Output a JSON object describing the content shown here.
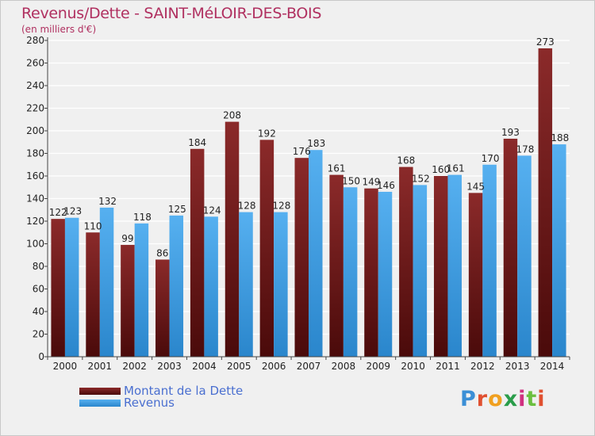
{
  "header": {
    "title": "Revenus/Dette - SAINT-MéLOIR-DES-BOIS",
    "subtitle": "(en milliers d'€)"
  },
  "legend": {
    "items": [
      {
        "label": "Montant de la Dette",
        "color": "#7a1f1f"
      },
      {
        "label": "Revenus",
        "color": "#3e9ee6"
      }
    ]
  },
  "logo": {
    "text": "Proxiti",
    "letter_colors": [
      "#3b8fd6",
      "#e05030",
      "#f0a020",
      "#2a9d4a",
      "#d03080",
      "#6bbf40",
      "#e05030"
    ]
  },
  "chart_data": {
    "type": "bar",
    "title": "Revenus/Dette - SAINT-MéLOIR-DES-BOIS",
    "subtitle": "(en milliers d'€)",
    "categories": [
      "2000",
      "2001",
      "2002",
      "2003",
      "2004",
      "2005",
      "2006",
      "2007",
      "2008",
      "2009",
      "2010",
      "2011",
      "2012",
      "2013",
      "2014"
    ],
    "series": [
      {
        "name": "Montant de la Dette",
        "color": "#7a1f1f",
        "values": [
          122,
          110,
          99,
          86,
          184,
          208,
          192,
          176,
          161,
          149,
          168,
          160,
          145,
          193,
          273
        ]
      },
      {
        "name": "Revenus",
        "color": "#3e9ee6",
        "values": [
          123,
          132,
          118,
          125,
          124,
          128,
          128,
          183,
          150,
          146,
          152,
          161,
          170,
          178,
          188
        ]
      }
    ],
    "ylim": [
      0,
      280
    ],
    "ytick_step": 20,
    "grid": true,
    "legend_position": "bottom-left"
  }
}
